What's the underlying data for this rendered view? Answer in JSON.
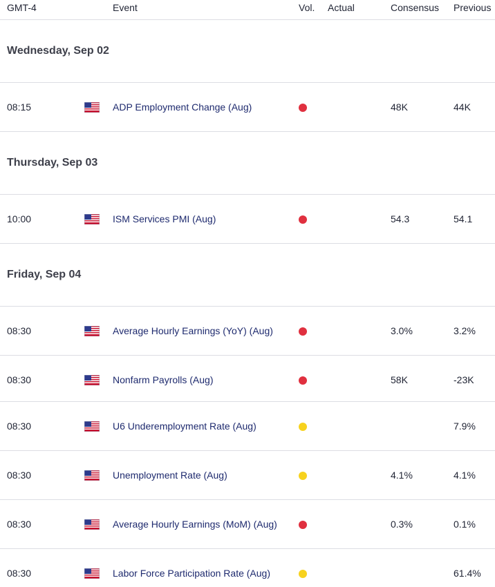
{
  "header": {
    "timezone": "GMT-4",
    "event": "Event",
    "vol": "Vol.",
    "actual": "Actual",
    "consensus": "Consensus",
    "previous": "Previous"
  },
  "colors": {
    "high": "#e0303f",
    "medium": "#f7d21e",
    "event_text": "#1e2a6e"
  },
  "days": [
    {
      "title": "Wednesday, Sep 02",
      "events": [
        {
          "time": "08:15",
          "country_icon": "us-flag-icon",
          "event": "ADP Employment Change (Aug)",
          "volatility": "high",
          "actual": "",
          "consensus": "48K",
          "previous": "44K"
        }
      ]
    },
    {
      "title": "Thursday, Sep 03",
      "events": [
        {
          "time": "10:00",
          "country_icon": "us-flag-icon",
          "event": "ISM Services PMI (Aug)",
          "volatility": "high",
          "actual": "",
          "consensus": "54.3",
          "previous": "54.1"
        }
      ]
    },
    {
      "title": "Friday, Sep 04",
      "events": [
        {
          "time": "08:30",
          "country_icon": "us-flag-icon",
          "event": "Average Hourly Earnings (YoY) (Aug)",
          "volatility": "high",
          "actual": "",
          "consensus": "3.0%",
          "previous": "3.2%"
        },
        {
          "time": "08:30",
          "country_icon": "us-flag-icon",
          "event": "Nonfarm Payrolls (Aug)",
          "volatility": "high",
          "actual": "",
          "consensus": "58K",
          "previous": "-23K"
        },
        {
          "time": "08:30",
          "country_icon": "us-flag-icon",
          "event": "U6 Underemployment Rate (Aug)",
          "volatility": "medium",
          "actual": "",
          "consensus": "",
          "previous": "7.9%"
        },
        {
          "time": "08:30",
          "country_icon": "us-flag-icon",
          "event": "Unemployment Rate (Aug)",
          "volatility": "medium",
          "actual": "",
          "consensus": "4.1%",
          "previous": "4.1%"
        },
        {
          "time": "08:30",
          "country_icon": "us-flag-icon",
          "event": "Average Hourly Earnings (MoM) (Aug)",
          "volatility": "high",
          "actual": "",
          "consensus": "0.3%",
          "previous": "0.1%"
        },
        {
          "time": "08:30",
          "country_icon": "us-flag-icon",
          "event": "Labor Force Participation Rate (Aug)",
          "volatility": "medium",
          "actual": "",
          "consensus": "",
          "previous": "61.4%"
        }
      ]
    }
  ]
}
